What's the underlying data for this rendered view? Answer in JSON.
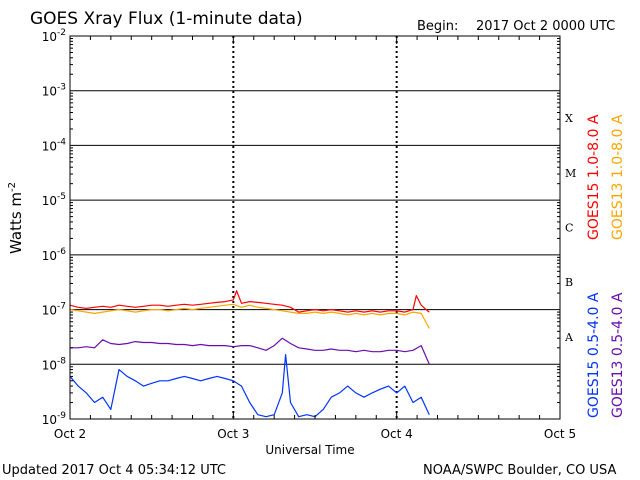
{
  "header": {
    "title": "GOES Xray Flux (1-minute data)",
    "begin_label": "Begin:",
    "begin_value": "2017 Oct 2 0000 UTC"
  },
  "footer": {
    "updated": "Updated 2017 Oct  4 05:34:12 UTC",
    "credit": "NOAA/SWPC Boulder, CO USA"
  },
  "chart_data": {
    "type": "line",
    "title": "GOES Xray Flux (1-minute data)",
    "xlabel": "Universal Time",
    "ylabel": "Watts m",
    "ylabel_sup": "-2",
    "yscale": "log",
    "ylim": [
      1e-09,
      0.01
    ],
    "xlim": [
      0,
      3
    ],
    "x_units": "days since 2017 Oct 2 0000 UTC",
    "x_ticks": [
      {
        "value": 0,
        "label": "Oct 2"
      },
      {
        "value": 1,
        "label": "Oct 3"
      },
      {
        "value": 2,
        "label": "Oct 4"
      },
      {
        "value": 3,
        "label": "Oct 5"
      }
    ],
    "y_ticks": [
      {
        "exp": -9,
        "label": "10",
        "sup": "-9"
      },
      {
        "exp": -8,
        "label": "10",
        "sup": "-8"
      },
      {
        "exp": -7,
        "label": "10",
        "sup": "-7"
      },
      {
        "exp": -6,
        "label": "10",
        "sup": "-6"
      },
      {
        "exp": -5,
        "label": "10",
        "sup": "-5"
      },
      {
        "exp": -4,
        "label": "10",
        "sup": "-4"
      },
      {
        "exp": -3,
        "label": "10",
        "sup": "-3"
      },
      {
        "exp": -2,
        "label": "10",
        "sup": "-2"
      }
    ],
    "flare_classes": [
      {
        "label": "A",
        "value": 3.16e-08
      },
      {
        "label": "B",
        "value": 3.16e-07
      },
      {
        "label": "C",
        "value": 3.16e-06
      },
      {
        "label": "M",
        "value": 3.16e-05
      },
      {
        "label": "X",
        "value": 0.000316
      }
    ],
    "grid": true,
    "series": [
      {
        "name": "GOES15 1.0-8.0 A",
        "color": "#ff0000",
        "x": [
          0.0,
          0.05,
          0.1,
          0.15,
          0.2,
          0.25,
          0.3,
          0.35,
          0.4,
          0.45,
          0.5,
          0.55,
          0.6,
          0.65,
          0.7,
          0.75,
          0.8,
          0.85,
          0.9,
          0.95,
          1.0,
          1.02,
          1.05,
          1.1,
          1.15,
          1.2,
          1.25,
          1.3,
          1.35,
          1.4,
          1.45,
          1.5,
          1.55,
          1.6,
          1.65,
          1.7,
          1.75,
          1.8,
          1.85,
          1.9,
          1.95,
          2.0,
          2.05,
          2.1,
          2.12,
          2.15,
          2.18,
          2.2
        ],
        "y": [
          1.2e-07,
          1.1e-07,
          1.05e-07,
          1.1e-07,
          1.15e-07,
          1.1e-07,
          1.2e-07,
          1.15e-07,
          1.1e-07,
          1.15e-07,
          1.2e-07,
          1.2e-07,
          1.15e-07,
          1.2e-07,
          1.25e-07,
          1.2e-07,
          1.25e-07,
          1.3e-07,
          1.35e-07,
          1.4e-07,
          1.5e-07,
          2.2e-07,
          1.3e-07,
          1.4e-07,
          1.35e-07,
          1.3e-07,
          1.25e-07,
          1.2e-07,
          1.1e-07,
          9e-08,
          9.5e-08,
          1e-07,
          9.5e-08,
          1e-07,
          9.5e-08,
          9e-08,
          9.5e-08,
          9e-08,
          9.5e-08,
          9e-08,
          9.5e-08,
          9.5e-08,
          9e-08,
          1e-07,
          1.8e-07,
          1.2e-07,
          1e-07,
          9e-08
        ]
      },
      {
        "name": "GOES13 1.0-8.0 A",
        "color": "#ffa500",
        "x": [
          0.0,
          0.05,
          0.1,
          0.15,
          0.2,
          0.25,
          0.3,
          0.35,
          0.4,
          0.45,
          0.5,
          0.55,
          0.6,
          0.65,
          0.7,
          0.75,
          0.8,
          0.85,
          0.9,
          0.95,
          1.0,
          1.05,
          1.1,
          1.15,
          1.2,
          1.25,
          1.3,
          1.35,
          1.4,
          1.45,
          1.5,
          1.55,
          1.6,
          1.65,
          1.7,
          1.75,
          1.8,
          1.85,
          1.9,
          1.95,
          2.0,
          2.05,
          2.1,
          2.15,
          2.2
        ],
        "y": [
          1e-07,
          9.5e-08,
          9e-08,
          8.5e-08,
          9e-08,
          9.5e-08,
          1e-07,
          9.5e-08,
          9e-08,
          9.5e-08,
          1e-07,
          1e-07,
          9.5e-08,
          1e-07,
          1.05e-07,
          1e-07,
          1.05e-07,
          1.1e-07,
          1.15e-07,
          1.2e-07,
          1.25e-07,
          1.1e-07,
          1.2e-07,
          1.1e-07,
          1.05e-07,
          1e-07,
          9.5e-08,
          9e-08,
          8.5e-08,
          8.5e-08,
          9e-08,
          8.5e-08,
          9e-08,
          8.5e-08,
          8e-08,
          8.5e-08,
          8e-08,
          8.5e-08,
          8e-08,
          8.5e-08,
          8.5e-08,
          8e-08,
          9e-08,
          8.5e-08,
          4.5e-08
        ]
      },
      {
        "name": "GOES15 0.5-4.0 A",
        "color": "#0033ff",
        "x": [
          0.0,
          0.05,
          0.1,
          0.15,
          0.2,
          0.25,
          0.3,
          0.35,
          0.4,
          0.45,
          0.5,
          0.55,
          0.6,
          0.65,
          0.7,
          0.75,
          0.8,
          0.85,
          0.9,
          0.95,
          1.0,
          1.05,
          1.1,
          1.15,
          1.2,
          1.25,
          1.3,
          1.32,
          1.35,
          1.4,
          1.45,
          1.5,
          1.55,
          1.6,
          1.65,
          1.7,
          1.75,
          1.8,
          1.85,
          1.9,
          1.95,
          2.0,
          2.05,
          2.1,
          2.15,
          2.2
        ],
        "y": [
          6e-09,
          4e-09,
          3e-09,
          2e-09,
          2.5e-09,
          1.5e-09,
          8e-09,
          6e-09,
          5e-09,
          4e-09,
          4.5e-09,
          5e-09,
          5e-09,
          5.5e-09,
          6e-09,
          5.5e-09,
          5e-09,
          5.5e-09,
          6e-09,
          5.5e-09,
          5e-09,
          4e-09,
          2e-09,
          1.2e-09,
          1.1e-09,
          1.2e-09,
          3e-09,
          1.5e-08,
          2e-09,
          1.1e-09,
          1.2e-09,
          1.1e-09,
          1.5e-09,
          2.5e-09,
          3e-09,
          4e-09,
          3e-09,
          2.5e-09,
          3e-09,
          3.5e-09,
          4e-09,
          3e-09,
          4e-09,
          2e-09,
          2.5e-09,
          1.2e-09
        ]
      },
      {
        "name": "GOES13 0.5-4.0 A",
        "color": "#6a0dad",
        "x": [
          0.0,
          0.05,
          0.1,
          0.15,
          0.2,
          0.25,
          0.3,
          0.35,
          0.4,
          0.45,
          0.5,
          0.55,
          0.6,
          0.65,
          0.7,
          0.75,
          0.8,
          0.85,
          0.9,
          0.95,
          1.0,
          1.05,
          1.1,
          1.15,
          1.2,
          1.25,
          1.3,
          1.35,
          1.4,
          1.45,
          1.5,
          1.55,
          1.6,
          1.65,
          1.7,
          1.75,
          1.8,
          1.85,
          1.9,
          1.95,
          2.0,
          2.05,
          2.1,
          2.15,
          2.2
        ],
        "y": [
          2e-08,
          2e-08,
          2.1e-08,
          2e-08,
          2.8e-08,
          2.4e-08,
          2.3e-08,
          2.4e-08,
          2.6e-08,
          2.5e-08,
          2.5e-08,
          2.4e-08,
          2.4e-08,
          2.3e-08,
          2.3e-08,
          2.2e-08,
          2.3e-08,
          2.2e-08,
          2.2e-08,
          2.2e-08,
          2.1e-08,
          2.2e-08,
          2.2e-08,
          2e-08,
          1.8e-08,
          2.2e-08,
          3e-08,
          2.4e-08,
          2e-08,
          1.9e-08,
          1.8e-08,
          1.8e-08,
          1.9e-08,
          1.8e-08,
          1.8e-08,
          1.7e-08,
          1.8e-08,
          1.7e-08,
          1.7e-08,
          1.8e-08,
          1.8e-08,
          1.7e-08,
          1.8e-08,
          2.2e-08,
          1e-08
        ]
      }
    ]
  }
}
